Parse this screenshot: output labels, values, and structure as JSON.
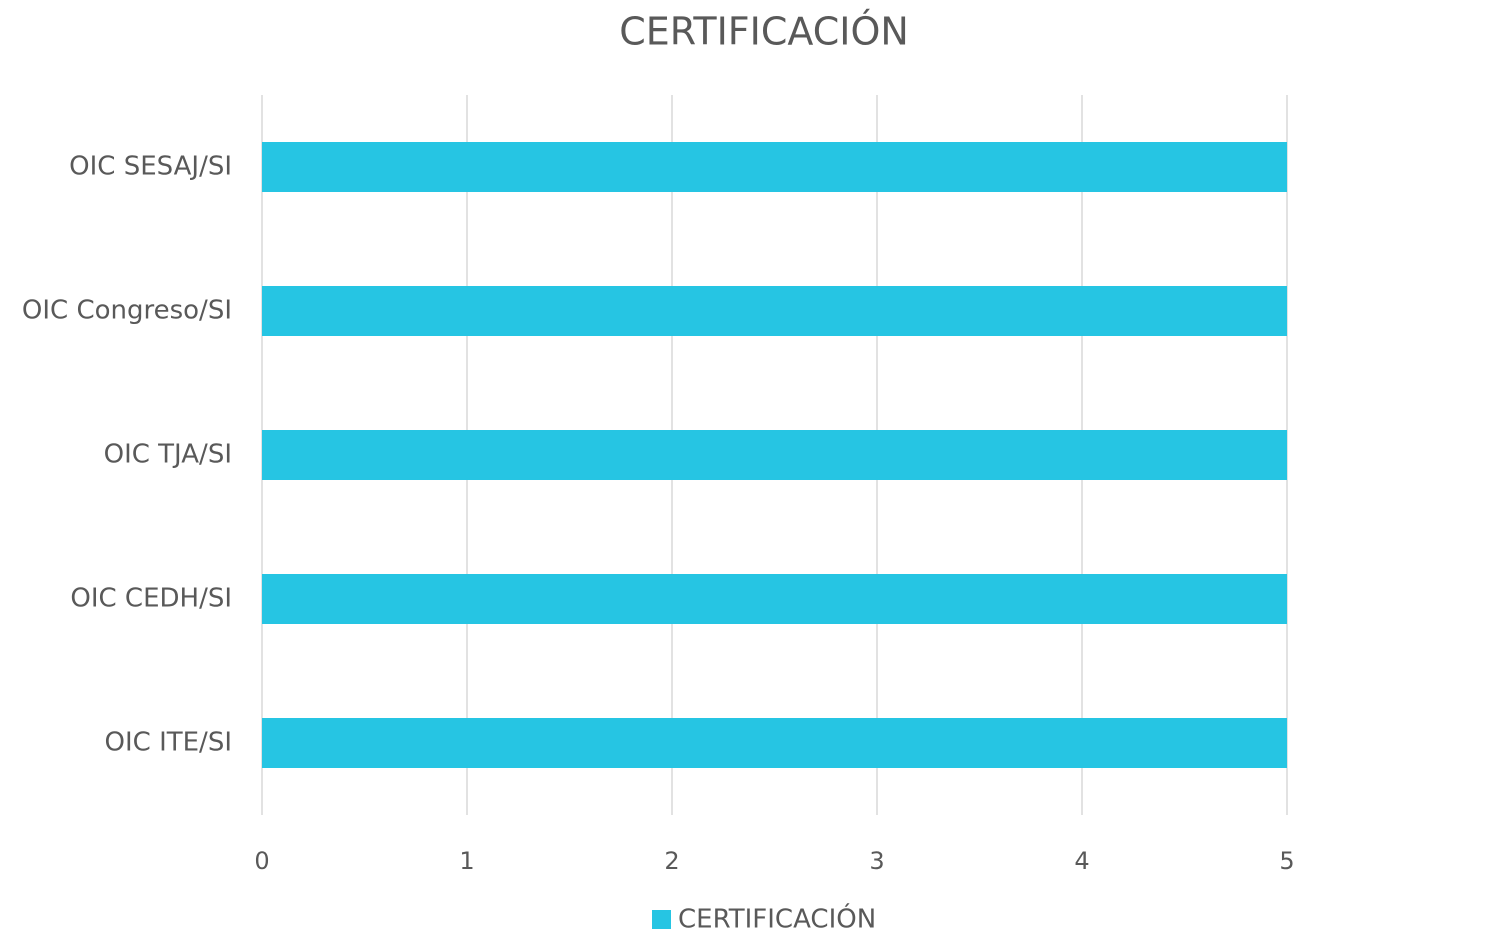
{
  "chart_data": {
    "type": "bar",
    "orientation": "horizontal",
    "title": "CERTIFICACIÓN",
    "categories": [
      "OIC SESAJ/SI",
      "OIC Congreso/SI",
      "OIC TJA/SI",
      "OIC CEDH/SI",
      "OIC ITE/SI"
    ],
    "series": [
      {
        "name": "CERTIFICACIÓN",
        "color": "#26c5e3",
        "values": [
          5,
          5,
          5,
          5,
          5
        ]
      }
    ],
    "xlim": [
      0,
      5
    ],
    "xticks": [
      0,
      1,
      2,
      3,
      4,
      5
    ],
    "grid": true,
    "legend": "bottom"
  }
}
